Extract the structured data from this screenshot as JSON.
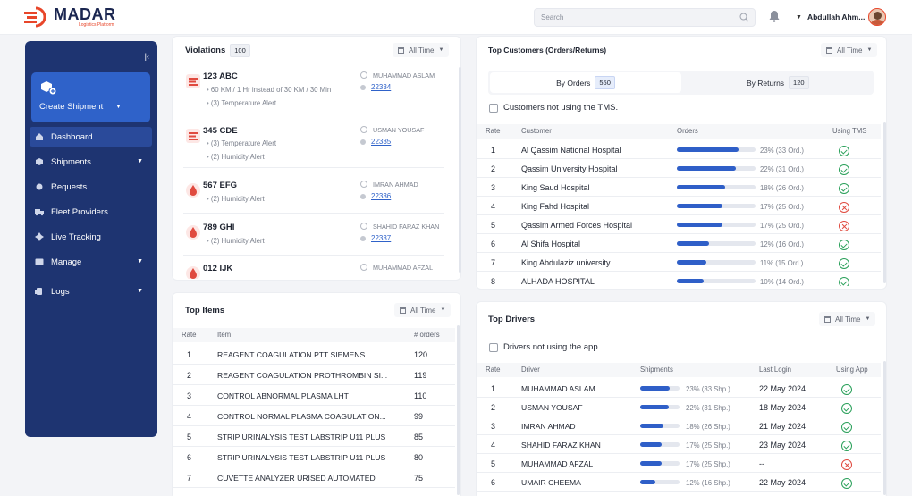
{
  "app": {
    "brand": "MADAR",
    "tagline": "Logistics Platform",
    "accent": "#e8462a",
    "navy": "#1e3471"
  },
  "header": {
    "search_placeholder": "Search",
    "user_name": "Abdullah Ahm..."
  },
  "sidebar": {
    "create_label": "Create Shipment",
    "items": [
      {
        "label": "Dashboard",
        "icon": "home-icon"
      },
      {
        "label": "Shipments",
        "icon": "box-icon"
      },
      {
        "label": "Requests",
        "icon": "pin-icon"
      },
      {
        "label": "Fleet Providers",
        "icon": "truck-icon"
      },
      {
        "label": "Live Tracking",
        "icon": "tracking-icon"
      },
      {
        "label": "Manage",
        "icon": "manage-icon"
      },
      {
        "label": "Logs",
        "icon": "logs-icon"
      }
    ]
  },
  "violations": {
    "title": "Violations",
    "count": "100",
    "filter": "All Time",
    "rows": [
      {
        "plate": "123 ABC",
        "details": [
          "60 KM / 1 Hr instead of 30 KM / 30 Min",
          "(3) Temperature Alert"
        ],
        "driver": "MUHAMMAD ASLAM",
        "id": "22334",
        "icon": "speed-alert-icon"
      },
      {
        "plate": "345 CDE",
        "details": [
          "(3) Temperature Alert",
          "(2) Humidity Alert"
        ],
        "driver": "USMAN YOUSAF",
        "id": "22335",
        "icon": "speed-alert-icon"
      },
      {
        "plate": "567 EFG",
        "details": [
          "(2) Humidity Alert"
        ],
        "driver": "IMRAN AHMAD",
        "id": "22336",
        "icon": "humidity-drop-icon"
      },
      {
        "plate": "789 GHI",
        "details": [
          "(2) Humidity Alert"
        ],
        "driver": "SHAHID FARAZ KHAN",
        "id": "22337",
        "icon": "humidity-drop-icon"
      },
      {
        "plate": "012 IJK",
        "details": [],
        "driver": "MUHAMMAD AFZAL",
        "id": "",
        "icon": "humidity-drop-icon"
      }
    ]
  },
  "top_items": {
    "title": "Top Items",
    "filter": "All Time",
    "columns": [
      "Rate",
      "Item",
      "# orders"
    ],
    "rows": [
      {
        "rate": "1",
        "item": "REAGENT COAGULATION PTT SIEMENS",
        "orders": "120"
      },
      {
        "rate": "2",
        "item": "REAGENT COAGULATION PROTHROMBIN SI...",
        "orders": "119"
      },
      {
        "rate": "3",
        "item": "CONTROL ABNORMAL PLASMA LHT",
        "orders": "110"
      },
      {
        "rate": "4",
        "item": "CONTROL NORMAL PLASMA COAGULATION...",
        "orders": "99"
      },
      {
        "rate": "5",
        "item": "STRIP URINALYSIS TEST LABSTRIP U11 PLUS",
        "orders": "85"
      },
      {
        "rate": "6",
        "item": "STRIP URINALYSIS TEST LABSTRIP U11 PLUS",
        "orders": "80"
      },
      {
        "rate": "7",
        "item": "CUVETTE ANALYZER URISED AUTOMATED",
        "orders": "75"
      }
    ]
  },
  "top_customers": {
    "title": "Top Customers (Orders/Returns)",
    "filter": "All Time",
    "tab_orders": "By Orders",
    "tab_orders_count": "550",
    "tab_returns": "By Returns",
    "tab_returns_count": "120",
    "checkbox": "Customers not using the TMS.",
    "columns": [
      "Rate",
      "Customer",
      "Orders",
      "Using TMS"
    ],
    "rows": [
      {
        "rate": "1",
        "name": "Al Qassim National Hospital",
        "pct_text": "23% (33 Ord.)",
        "pct": 0.23,
        "tms": true
      },
      {
        "rate": "2",
        "name": "Qassim University Hospital",
        "pct_text": "22% (31 Ord.)",
        "pct": 0.22,
        "tms": true
      },
      {
        "rate": "3",
        "name": "King Saud Hospital",
        "pct_text": "18% (26 Ord.)",
        "pct": 0.18,
        "tms": true
      },
      {
        "rate": "4",
        "name": "King Fahd Hospital",
        "pct_text": "17% (25 Ord.)",
        "pct": 0.17,
        "tms": false
      },
      {
        "rate": "5",
        "name": "Qassim Armed Forces Hospital",
        "pct_text": "17% (25 Ord.)",
        "pct": 0.17,
        "tms": false
      },
      {
        "rate": "6",
        "name": "Al Shifa Hospital",
        "pct_text": "12% (16 Ord.)",
        "pct": 0.12,
        "tms": true
      },
      {
        "rate": "7",
        "name": "King Abdulaziz university",
        "pct_text": "11% (15 Ord.)",
        "pct": 0.11,
        "tms": true
      },
      {
        "rate": "8",
        "name": "ALHADA HOSPITAL",
        "pct_text": "10% (14 Ord.)",
        "pct": 0.1,
        "tms": true
      }
    ]
  },
  "top_drivers": {
    "title": "Top Drivers",
    "filter": "All Time",
    "checkbox": "Drivers not using the app.",
    "columns": [
      "Rate",
      "Driver",
      "Shipments",
      "Last Login",
      "Using App"
    ],
    "rows": [
      {
        "rate": "1",
        "name": "MUHAMMAD ASLAM",
        "pct_text": "23% (33 Shp.)",
        "pct": 0.23,
        "login": "22 May 2024",
        "app": true
      },
      {
        "rate": "2",
        "name": "USMAN YOUSAF",
        "pct_text": "22% (31 Shp.)",
        "pct": 0.22,
        "login": "18 May 2024",
        "app": true
      },
      {
        "rate": "3",
        "name": "IMRAN AHMAD",
        "pct_text": "18% (26 Shp.)",
        "pct": 0.18,
        "login": "21 May 2024",
        "app": true
      },
      {
        "rate": "4",
        "name": "SHAHID FARAZ KHAN",
        "pct_text": "17% (25 Shp.)",
        "pct": 0.17,
        "login": "23 May 2024",
        "app": true
      },
      {
        "rate": "5",
        "name": "MUHAMMAD AFZAL",
        "pct_text": "17% (25 Shp.)",
        "pct": 0.17,
        "login": "--",
        "app": false
      },
      {
        "rate": "6",
        "name": "UMAIR CHEEMA",
        "pct_text": "12% (16 Shp.)",
        "pct": 0.12,
        "login": "22 May 2024",
        "app": true
      }
    ]
  }
}
